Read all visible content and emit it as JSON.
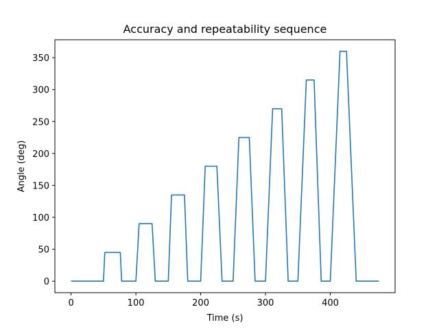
{
  "chart_data": {
    "type": "line",
    "title": "Accuracy and repeatability sequence",
    "xlabel": "Time (s)",
    "ylabel": "Angle (deg)",
    "xlim": [
      -25,
      500
    ],
    "ylim": [
      -18,
      378
    ],
    "xticks": [
      0,
      100,
      200,
      300,
      400
    ],
    "yticks": [
      0,
      50,
      100,
      150,
      200,
      250,
      300,
      350
    ],
    "grid": false,
    "series": [
      {
        "color": "#1f77b4",
        "x": [
          0,
          50,
          52,
          76,
          78,
          100,
          105,
          125,
          130,
          150,
          155,
          175,
          180,
          200,
          207,
          225,
          233,
          250,
          259,
          275,
          284,
          300,
          311,
          325,
          335,
          350,
          363,
          375,
          386,
          400,
          415,
          425,
          440,
          475
        ],
        "y": [
          0,
          0,
          45,
          45,
          0,
          0,
          90,
          90,
          0,
          0,
          135,
          135,
          0,
          0,
          180,
          180,
          0,
          0,
          225,
          225,
          0,
          0,
          270,
          270,
          0,
          0,
          315,
          315,
          0,
          0,
          360,
          360,
          0,
          0
        ]
      }
    ]
  }
}
